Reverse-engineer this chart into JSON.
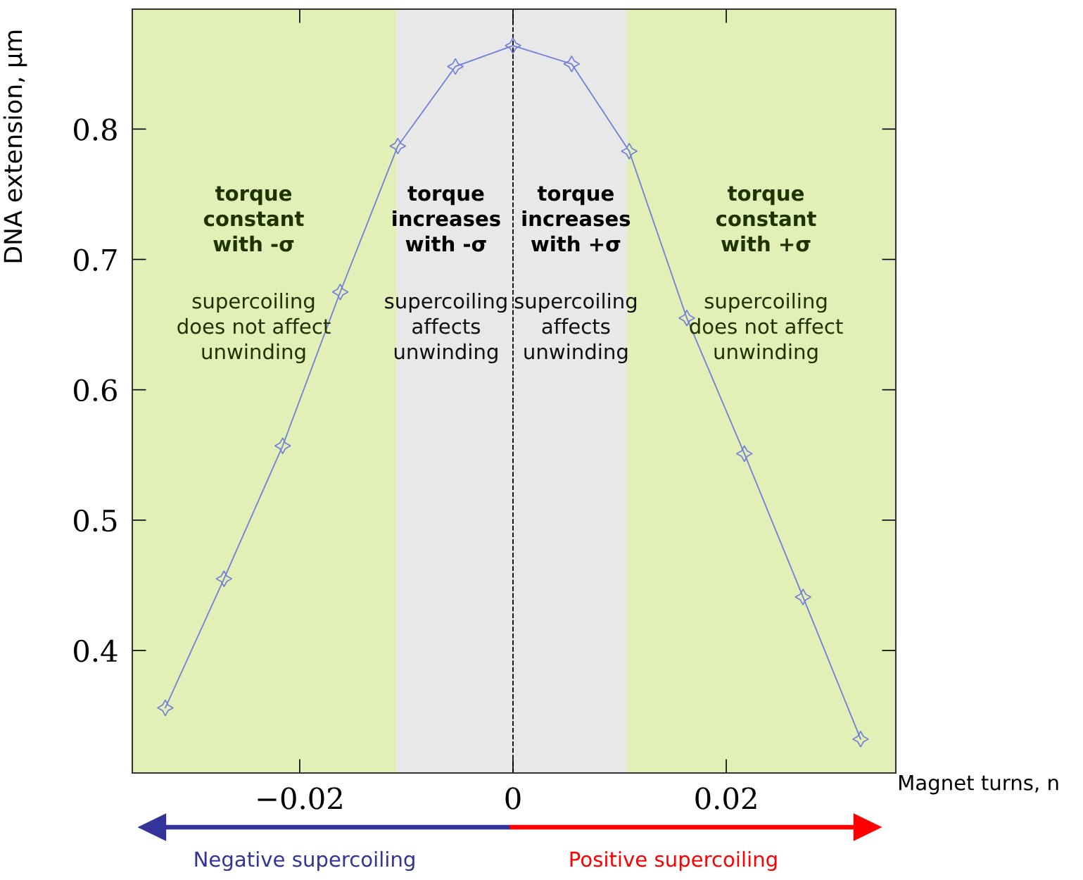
{
  "chart_data": {
    "type": "line",
    "xlabel": "Magnet turns, n",
    "ylabel": "DNA extension, µm",
    "x": [
      -0.0326,
      -0.0271,
      -0.0216,
      -0.0162,
      -0.0108,
      -0.0054,
      0,
      0.0055,
      0.0109,
      0.0163,
      0.0217,
      0.0272,
      0.0326
    ],
    "series": [
      {
        "color": "#7080d8",
        "values": [
          0.356,
          0.455,
          0.557,
          0.675,
          0.787,
          0.848,
          0.864,
          0.85,
          0.783,
          0.655,
          0.551,
          0.441,
          0.332
        ]
      }
    ],
    "xlim": [
      -0.0357,
      0.0359
    ],
    "ylim": [
      0.306,
      0.892
    ],
    "xticks": [
      {
        "value": -0.02,
        "label": "−0.02"
      },
      0,
      0.02
    ],
    "yticks": [
      0.4,
      0.5,
      0.6,
      0.7,
      0.8
    ],
    "marker": "star",
    "line_style": "solid",
    "grid": false,
    "legend": false,
    "bands": [
      {
        "axis": "x",
        "from": -0.0357,
        "to": -0.0109,
        "color": "#e2efb6"
      },
      {
        "axis": "x",
        "from": -0.0109,
        "to": 0.0107,
        "color": "#e8e8e8"
      },
      {
        "axis": "x",
        "from": 0.0107,
        "to": 0.0359,
        "color": "#e2efb6"
      }
    ],
    "ref_lines": [
      {
        "axis": "x",
        "value": 0,
        "color": "#000000",
        "line_style": "dashed"
      }
    ],
    "annotations": [
      "torque\nconstant\nwith -σ",
      "supercoiling\ndoes not affect\nunwinding",
      "torque\nincreases\nwith -σ",
      "supercoiling\naffects\nunwinding",
      "torque\nincreases\nwith +σ",
      "supercoiling\naffects\nunwinding",
      "torque\nconstant\nwith +σ",
      "supercoiling\ndoes not affect\nunwinding",
      "Negative supercoiling",
      "Positive supercoiling"
    ]
  }
}
